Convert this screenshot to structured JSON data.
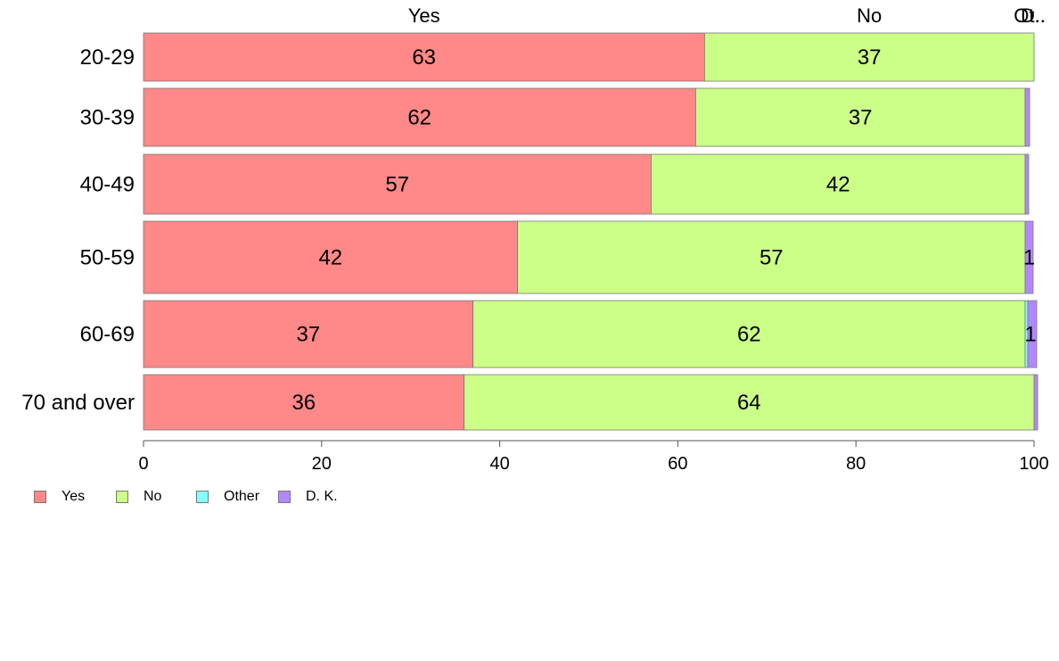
{
  "chart_data": {
    "type": "bar",
    "orientation": "horizontal",
    "stacked": true,
    "categories": [
      "20-29",
      "30-39",
      "40-49",
      "50-59",
      "60-69",
      "70 and over"
    ],
    "series": [
      {
        "name": "Yes",
        "color": "#ff8888",
        "values": [
          63,
          62,
          57,
          42,
          37,
          36
        ]
      },
      {
        "name": "No",
        "color": "#ccff88",
        "values": [
          37,
          37,
          42,
          57,
          62,
          64
        ]
      },
      {
        "name": "Other",
        "color": "#88ffff",
        "values": [
          0,
          0,
          0,
          0,
          0.3,
          0
        ]
      },
      {
        "name": "D. K.",
        "color": "#b388ff",
        "values": [
          0,
          0.5,
          0.4,
          0.9,
          1,
          0.4
        ]
      }
    ],
    "data_labels": [
      [
        "63",
        "37",
        "",
        ""
      ],
      [
        "62",
        "37",
        "",
        ""
      ],
      [
        "57",
        "42",
        "",
        ""
      ],
      [
        "42",
        "57",
        "",
        "1"
      ],
      [
        "37",
        "62",
        "",
        "1"
      ],
      [
        "36",
        "64",
        "",
        ""
      ]
    ],
    "top_labels": [
      "Yes",
      "No",
      "Ot..",
      "D.."
    ],
    "xlim": [
      0,
      100
    ],
    "xticks": [
      0,
      20,
      40,
      60,
      80,
      100
    ],
    "grid": false,
    "legend_position": "bottom-left",
    "legend": [
      "Yes",
      "No",
      "Other",
      "D. K."
    ]
  }
}
